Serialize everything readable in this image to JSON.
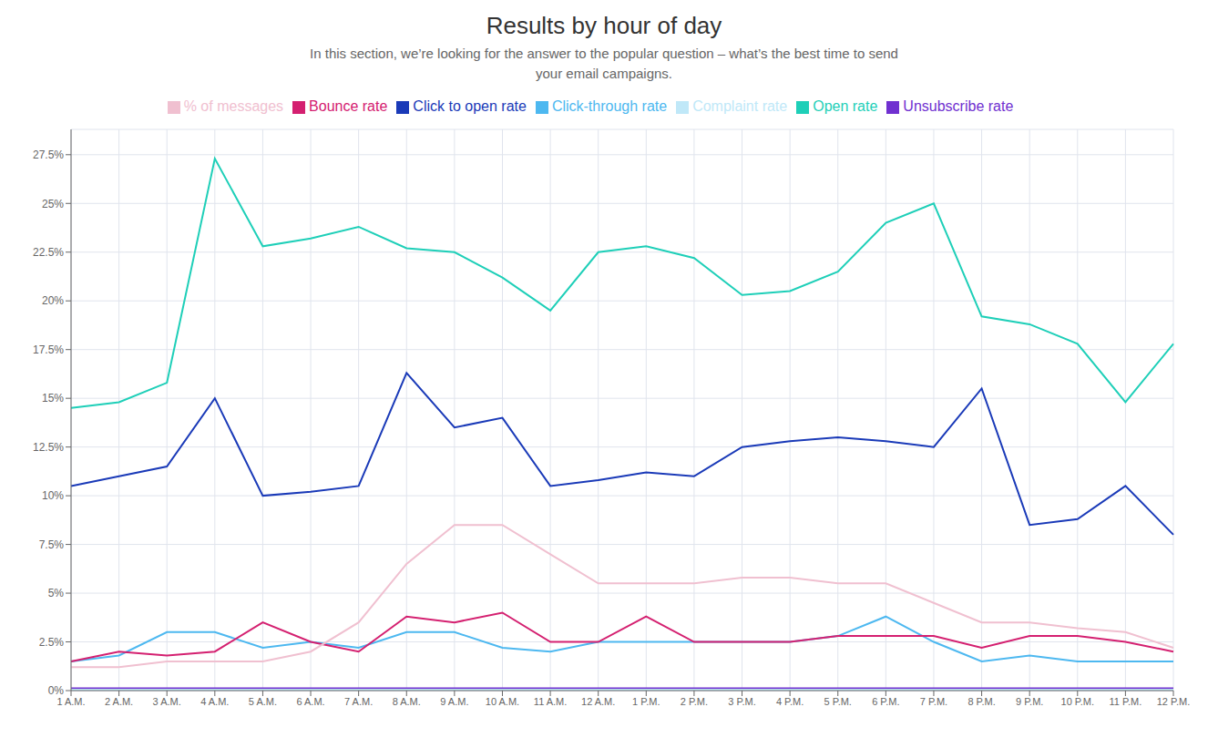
{
  "chart_data": {
    "type": "line",
    "title": "Results by hour of day",
    "subtitle": "In this section, we’re looking for the answer to the popular question – what’s the best time to send\nyour email campaigns.",
    "categories": [
      "1 A.M.",
      "2 A.M.",
      "3 A.M.",
      "4 A.M.",
      "5 A.M.",
      "6 A.M.",
      "7 A.M.",
      "8 A.M.",
      "9 A.M.",
      "10 A.M.",
      "11 A.M.",
      "12 A.M.",
      "1 P.M.",
      "2 P.M.",
      "3 P.M.",
      "4 P.M.",
      "5 P.M.",
      "6 P.M.",
      "7 P.M.",
      "8 P.M.",
      "9 P.M.",
      "10 P.M.",
      "11 P.M.",
      "12 P.M."
    ],
    "series": [
      {
        "name": "Open rate",
        "color": "#1ecfb8",
        "values": [
          14.5,
          14.8,
          15.8,
          27.3,
          22.8,
          23.2,
          23.8,
          22.7,
          22.5,
          21.2,
          19.5,
          22.5,
          22.8,
          22.2,
          20.3,
          20.5,
          21.5,
          24.0,
          25.0,
          19.2,
          18.8,
          17.8,
          14.8,
          17.8
        ]
      },
      {
        "name": "Click-through rate",
        "color": "#4db8f0",
        "values": [
          1.5,
          1.8,
          3.0,
          3.0,
          2.2,
          2.5,
          2.2,
          3.0,
          3.0,
          2.2,
          2.0,
          2.5,
          2.5,
          2.5,
          2.5,
          2.5,
          2.8,
          3.8,
          2.5,
          1.5,
          1.8,
          1.5,
          1.5,
          1.5
        ]
      },
      {
        "name": "Click to open rate",
        "color": "#1a3ab8",
        "values": [
          10.5,
          11.0,
          11.5,
          15.0,
          10.0,
          10.2,
          10.5,
          16.3,
          13.5,
          14.0,
          10.5,
          10.8,
          11.2,
          11.0,
          12.5,
          12.8,
          13.0,
          12.8,
          12.5,
          15.5,
          8.5,
          8.8,
          10.5,
          8.0
        ]
      },
      {
        "name": "Unsubscribe rate",
        "color": "#7030d0",
        "values": [
          0.12,
          0.12,
          0.12,
          0.12,
          0.12,
          0.12,
          0.12,
          0.12,
          0.12,
          0.12,
          0.12,
          0.12,
          0.12,
          0.12,
          0.12,
          0.12,
          0.12,
          0.12,
          0.12,
          0.12,
          0.12,
          0.12,
          0.12,
          0.12
        ]
      },
      {
        "name": "Complaint rate",
        "color": "#c0e8f8",
        "values": [
          0.05,
          0.05,
          0.05,
          0.05,
          0.05,
          0.05,
          0.05,
          0.05,
          0.05,
          0.05,
          0.05,
          0.05,
          0.05,
          0.05,
          0.05,
          0.05,
          0.05,
          0.05,
          0.05,
          0.05,
          0.05,
          0.05,
          0.05,
          0.05
        ]
      },
      {
        "name": "Bounce rate",
        "color": "#d42070",
        "values": [
          1.5,
          2.0,
          1.8,
          2.0,
          3.5,
          2.5,
          2.0,
          3.8,
          3.5,
          4.0,
          2.5,
          2.5,
          3.8,
          2.5,
          2.5,
          2.5,
          2.8,
          2.8,
          2.8,
          2.2,
          2.8,
          2.8,
          2.5,
          2.0
        ]
      },
      {
        "name": "% of messages",
        "color": "#f0c0d0",
        "values": [
          1.2,
          1.2,
          1.5,
          1.5,
          1.5,
          2.0,
          3.5,
          6.5,
          8.5,
          8.5,
          7.0,
          5.5,
          5.5,
          5.5,
          5.8,
          5.8,
          5.5,
          5.5,
          4.5,
          3.5,
          3.5,
          3.2,
          3.0,
          2.2
        ]
      }
    ],
    "ylim": [
      0,
      28.8
    ],
    "yticks": [
      {
        "value": 0,
        "label": "0%"
      },
      {
        "value": 2.5,
        "label": "2.5%"
      },
      {
        "value": 5.0,
        "label": "5%"
      },
      {
        "value": 7.5,
        "label": "7.5%"
      },
      {
        "value": 10.0,
        "label": "10%"
      },
      {
        "value": 12.5,
        "label": "12.5%"
      },
      {
        "value": 15.0,
        "label": "15%"
      },
      {
        "value": 17.5,
        "label": "17.5%"
      },
      {
        "value": 20.0,
        "label": "20%"
      },
      {
        "value": 22.5,
        "label": "22.5%"
      },
      {
        "value": 25.0,
        "label": "25%"
      },
      {
        "value": 27.5,
        "label": "27.5%"
      }
    ],
    "grid": true,
    "legend": "top"
  }
}
